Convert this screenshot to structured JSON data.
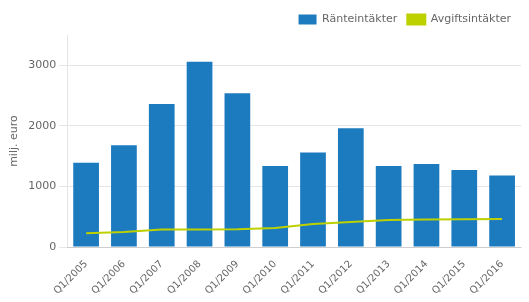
{
  "chart_data": {
    "type": "bar",
    "categories": [
      "Q1/2005",
      "Q1/2006",
      "Q1/2007",
      "Q1/2008",
      "Q1/2009",
      "Q1/2010",
      "Q1/2011",
      "Q1/2012",
      "Q1/2013",
      "Q1/2014",
      "Q1/2015",
      "Q1/2016"
    ],
    "series": [
      {
        "name": "Ränteintäkter",
        "type": "bar",
        "color": "#1c7abf",
        "values": [
          1390,
          1680,
          2360,
          3060,
          2540,
          1340,
          1560,
          1960,
          1340,
          1370,
          1270,
          1180
        ]
      },
      {
        "name": "Avgiftsintäkter",
        "type": "line",
        "color": "#bdd100",
        "values": [
          230,
          250,
          290,
          290,
          295,
          315,
          380,
          415,
          445,
          455,
          460,
          465
        ]
      }
    ],
    "ylabel": "milj. euro",
    "ylim": [
      0,
      3500
    ],
    "yticks": [
      0,
      1000,
      2000,
      3000
    ],
    "grid": true,
    "legend": "upper right"
  }
}
